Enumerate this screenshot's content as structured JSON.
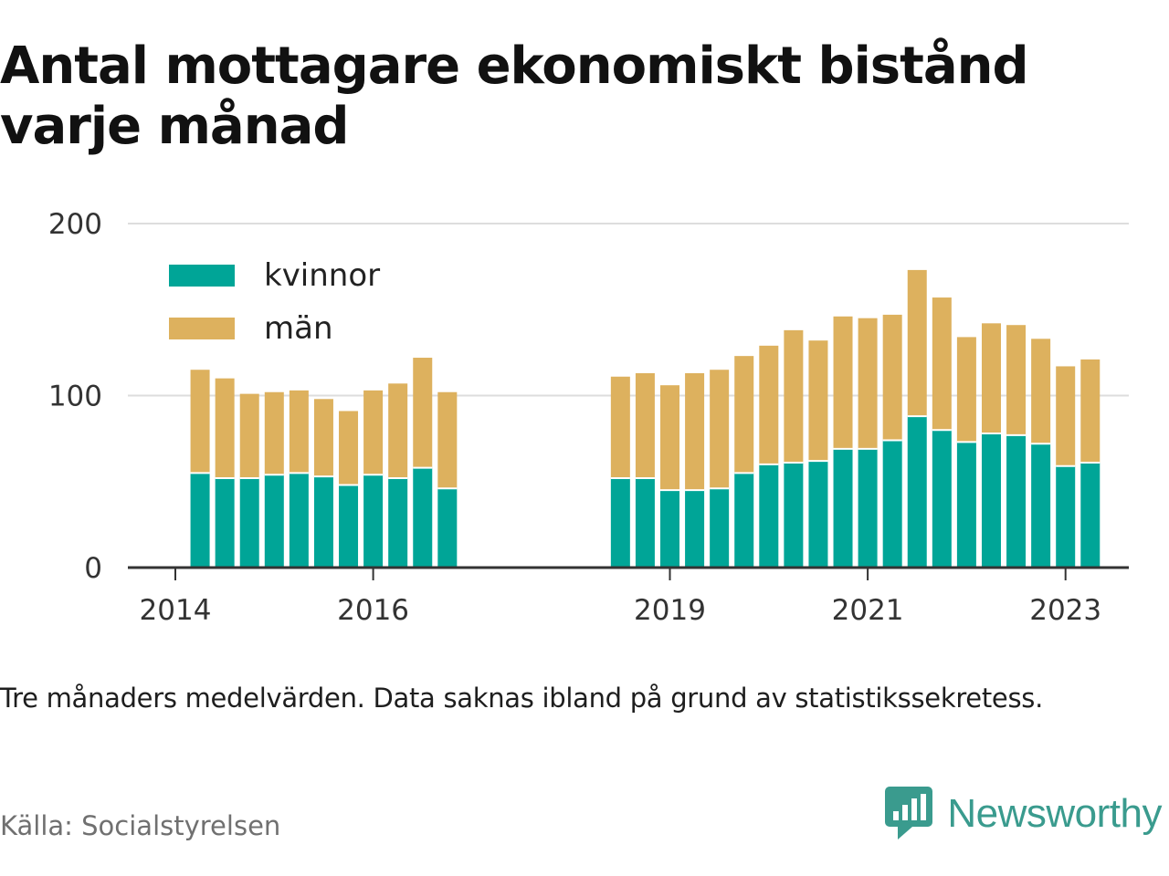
{
  "title": "Antal mottagare ekonomiskt bistånd varje månad",
  "note": "Tre månaders medelvärden. Data saknas ibland på grund av statistikssekretess.",
  "source": "Källa: Socialstyrelsen",
  "brand": {
    "name": "Newsworthy",
    "icon": "newsworthy-logo-icon",
    "color": "#3a9b8e"
  },
  "colors": {
    "kvinnor": "#00a597",
    "man": "#ddb15e",
    "grid": "#dddddd",
    "axis": "#333333"
  },
  "chart_data": {
    "type": "bar",
    "stacked": true,
    "title": "Antal mottagare ekonomiskt bistånd varje månad",
    "xlabel": "",
    "ylabel": "",
    "ylim": [
      0,
      200
    ],
    "yticks": [
      0,
      100,
      200
    ],
    "xticks": [
      "2014",
      "2016",
      "2019",
      "2021",
      "2023"
    ],
    "grid": true,
    "legend_position": "top-left",
    "periods": [
      "2014-Q2",
      "2014-Q3",
      "2014-Q4",
      "2015-Q1",
      "2015-Q2",
      "2015-Q3",
      "2015-Q4",
      "2016-Q1",
      "2016-Q2",
      "2016-Q3",
      "2016-Q4",
      "2018-Q3",
      "2018-Q4",
      "2019-Q1",
      "2019-Q2",
      "2019-Q3",
      "2019-Q4",
      "2020-Q1",
      "2020-Q2",
      "2020-Q3",
      "2020-Q4",
      "2021-Q1",
      "2021-Q2",
      "2021-Q3",
      "2021-Q4",
      "2022-Q1",
      "2022-Q2",
      "2022-Q3",
      "2022-Q4",
      "2023-Q1",
      "2023-Q2"
    ],
    "series": [
      {
        "name": "kvinnor",
        "values": [
          55,
          52,
          52,
          54,
          55,
          53,
          48,
          54,
          52,
          58,
          46,
          52,
          52,
          45,
          45,
          46,
          55,
          60,
          61,
          62,
          69,
          69,
          74,
          88,
          80,
          73,
          78,
          77,
          72,
          59,
          61
        ]
      },
      {
        "name": "män",
        "values": [
          60,
          58,
          49,
          48,
          48,
          45,
          43,
          49,
          55,
          64,
          56,
          59,
          61,
          61,
          68,
          69,
          68,
          69,
          77,
          70,
          77,
          76,
          73,
          85,
          77,
          61,
          64,
          64,
          61,
          58,
          60
        ]
      }
    ]
  }
}
